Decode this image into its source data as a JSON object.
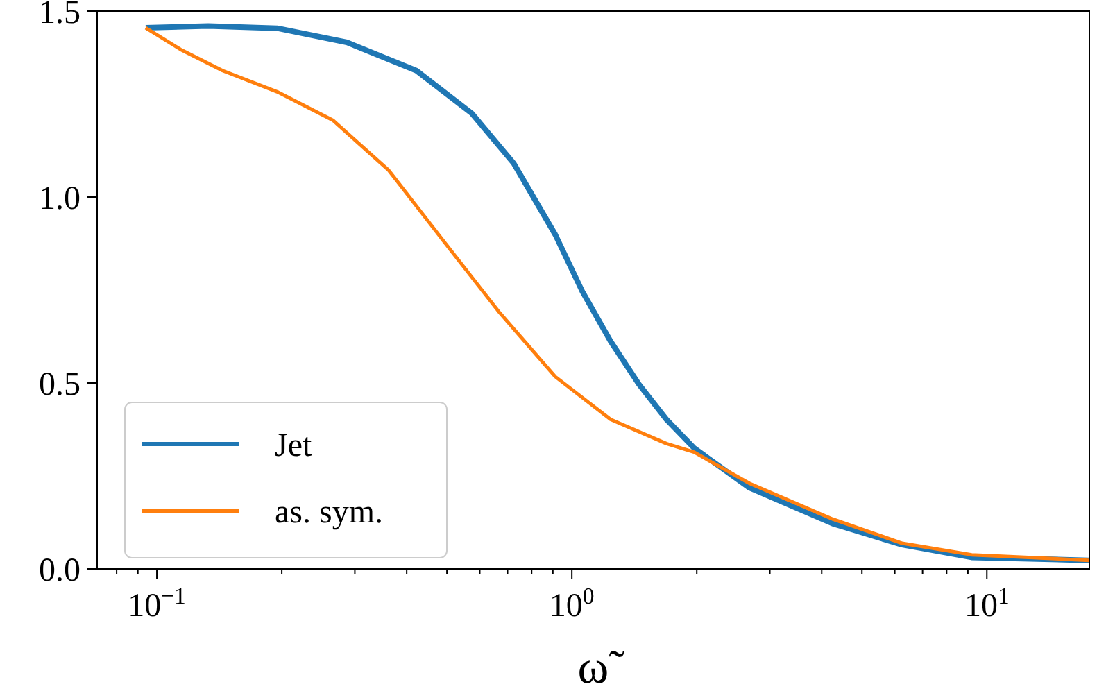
{
  "chart_data": {
    "type": "line",
    "xlabel": "ω̃",
    "log": "x",
    "xlim": [
      0.0718,
      17.66
    ],
    "ylim": [
      0,
      1.5
    ],
    "xticks": [
      {
        "value": 0.08,
        "label": null
      },
      {
        "value": 0.09,
        "label": null
      },
      {
        "value": 0.1,
        "label": "10$^{−1}$"
      },
      {
        "value": 0.2,
        "label": null
      },
      {
        "value": 0.3,
        "label": null
      },
      {
        "value": 0.4,
        "label": null
      },
      {
        "value": 0.5,
        "label": null
      },
      {
        "value": 0.6,
        "label": null
      },
      {
        "value": 0.7,
        "label": null
      },
      {
        "value": 0.8,
        "label": null
      },
      {
        "value": 0.9,
        "label": null
      },
      {
        "value": 1,
        "label": "10$^{0}$"
      },
      {
        "value": 2,
        "label": null
      },
      {
        "value": 3,
        "label": null
      },
      {
        "value": 4,
        "label": null
      },
      {
        "value": 5,
        "label": null
      },
      {
        "value": 6,
        "label": null
      },
      {
        "value": 7,
        "label": null
      },
      {
        "value": 8,
        "label": null
      },
      {
        "value": 9,
        "label": null
      },
      {
        "value": 10,
        "label": "10$^{1}$"
      }
    ],
    "yticks": [
      {
        "value": 0,
        "label": "0.0"
      },
      {
        "value": 0.5,
        "label": "0.5"
      },
      {
        "value": 1,
        "label": "1.0"
      },
      {
        "value": 1.5,
        "label": "1.5"
      }
    ],
    "grid": false,
    "legend": "bottom left",
    "marker": "none",
    "line_style": "solid",
    "series": [
      {
        "name": "Jet",
        "color": "#1f77b4",
        "x": [
          0.094,
          0.133,
          0.195,
          0.287,
          0.422,
          0.574,
          0.724,
          0.912,
          1.06,
          1.24,
          1.45,
          1.69,
          1.97,
          2.68,
          4.25,
          6.25,
          9.19,
          17.6
        ],
        "values": [
          1.455,
          1.46,
          1.454,
          1.416,
          1.34,
          1.225,
          1.091,
          0.899,
          0.746,
          0.612,
          0.497,
          0.402,
          0.325,
          0.218,
          0.122,
          0.065,
          0.031,
          0.023
        ]
      },
      {
        "name": "as. sym.",
        "color": "#ff7f0e",
        "x": [
          0.094,
          0.114,
          0.144,
          0.195,
          0.266,
          0.362,
          0.492,
          0.67,
          0.912,
          1.24,
          1.69,
          1.97,
          2.68,
          4.25,
          6.25,
          9.19,
          17.6
        ],
        "values": [
          1.455,
          1.397,
          1.34,
          1.283,
          1.206,
          1.072,
          0.88,
          0.689,
          0.517,
          0.402,
          0.337,
          0.314,
          0.23,
          0.134,
          0.069,
          0.038,
          0.023
        ]
      }
    ]
  }
}
